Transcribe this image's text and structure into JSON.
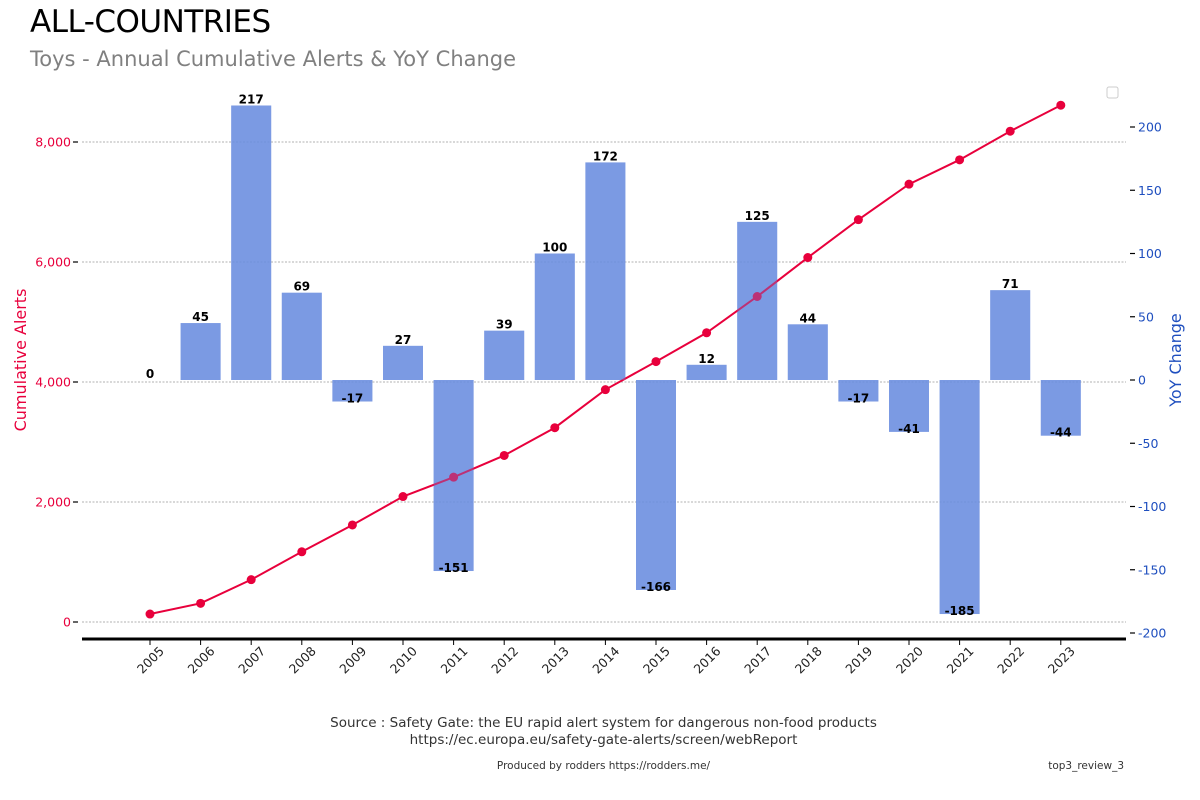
{
  "header": {
    "title": "ALL-COUNTRIES",
    "subtitle": "Toys - Annual Cumulative Alerts & YoY Change"
  },
  "footer": {
    "source_line1": "Source : Safety Gate: the EU rapid alert system for dangerous non-food products",
    "source_line2": "https://ec.europa.eu/safety-gate-alerts/screen/webReport",
    "produced_by": "Produced by rodders https://rodders.me/",
    "tag": "top3_review_3"
  },
  "colors": {
    "line": "#e8003c",
    "bar": "#6a8ddf",
    "left_axis": "#e8003c",
    "right_axis": "#1f4fbf"
  },
  "chart_data": {
    "type": "bar+line",
    "title": "Toys - Annual Cumulative Alerts & YoY Change",
    "categories": [
      "2005",
      "2006",
      "2007",
      "2008",
      "2009",
      "2010",
      "2011",
      "2012",
      "2013",
      "2014",
      "2015",
      "2016",
      "2017",
      "2018",
      "2019",
      "2020",
      "2021",
      "2022",
      "2023"
    ],
    "series": [
      {
        "name": "Cumulative Alerts",
        "type": "line",
        "axis": "left",
        "values": [
          133,
          311,
          706,
          1170,
          1617,
          2091,
          2414,
          2776,
          3238,
          3872,
          4340,
          4820,
          5425,
          6074,
          6706,
          7297,
          7703,
          8180,
          8613
        ]
      },
      {
        "name": "YoY Change",
        "type": "bar",
        "axis": "right",
        "values": [
          0,
          45,
          217,
          69,
          -17,
          27,
          -151,
          39,
          100,
          172,
          -166,
          12,
          125,
          44,
          -17,
          -41,
          -185,
          71,
          -44
        ],
        "labels": [
          "0",
          "45",
          "217",
          "69",
          "-17",
          "27",
          "-151",
          "39",
          "100",
          "172",
          "-166",
          "12",
          "125",
          "44",
          "-17",
          "-41",
          "-185",
          "71",
          "-44"
        ]
      }
    ],
    "left_axis": {
      "label": "Cumulative Alerts",
      "range": [
        -267,
        8800
      ],
      "ticks": [
        0,
        2000,
        4000,
        6000,
        8000
      ],
      "tick_labels": [
        "0",
        "2,000",
        "4,000",
        "6,000",
        "8,000"
      ]
    },
    "right_axis": {
      "label": "YoY Change",
      "range": [
        -200,
        200
      ],
      "ticks": [
        200,
        150,
        100,
        50,
        0,
        -50,
        -100,
        -150,
        -200
      ],
      "tick_labels": [
        "200",
        "150",
        "100",
        "50",
        "0",
        "-50",
        "-100",
        "-150",
        "-200"
      ]
    },
    "xlabel": "",
    "grid": true,
    "legend": "top-right (empty)"
  }
}
